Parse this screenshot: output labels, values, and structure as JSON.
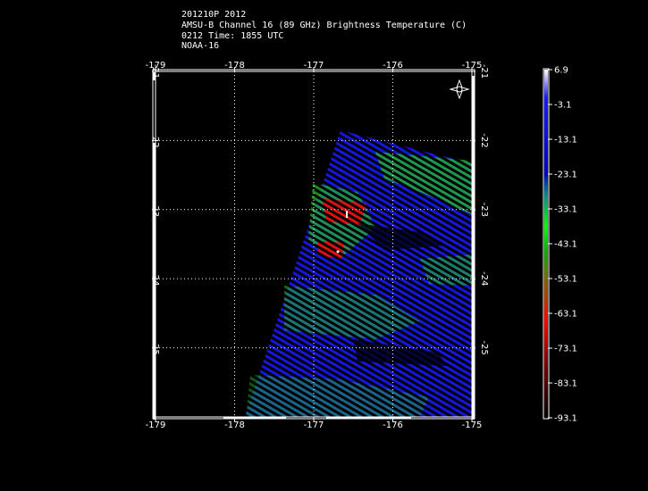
{
  "header": {
    "line1": "201210P 2012",
    "line2": "AMSU-B Channel 16 (89 GHz) Brightness Temperature (C)",
    "line3": "0212 Time: 1855 UTC",
    "line4": "NOAA-16"
  },
  "map": {
    "lon_ticks": [
      "-179",
      "-178",
      "-177",
      "-176",
      "-175"
    ],
    "lat_ticks": [
      "-21",
      "-22",
      "-23",
      "-24",
      "-25"
    ],
    "lon_range": [
      -179.0,
      -175.0
    ],
    "lat_range": [
      -26.0,
      -21.0
    ],
    "grid": "dotted",
    "background": "#000000",
    "frame_color": "#ffffff"
  },
  "colorbar": {
    "labels": [
      "6.9",
      "-3.1",
      "-13.1",
      "-23.1",
      "-33.1",
      "-43.1",
      "-53.1",
      "-63.1",
      "-73.1",
      "-83.1",
      "-93.1"
    ],
    "range": [
      -93.1,
      6.9
    ],
    "colors": [
      "#ffffff",
      "#0000ff",
      "#00ff00",
      "#ff0000",
      "#000000"
    ]
  },
  "icons": {
    "compass": "compass-rose-icon"
  }
}
